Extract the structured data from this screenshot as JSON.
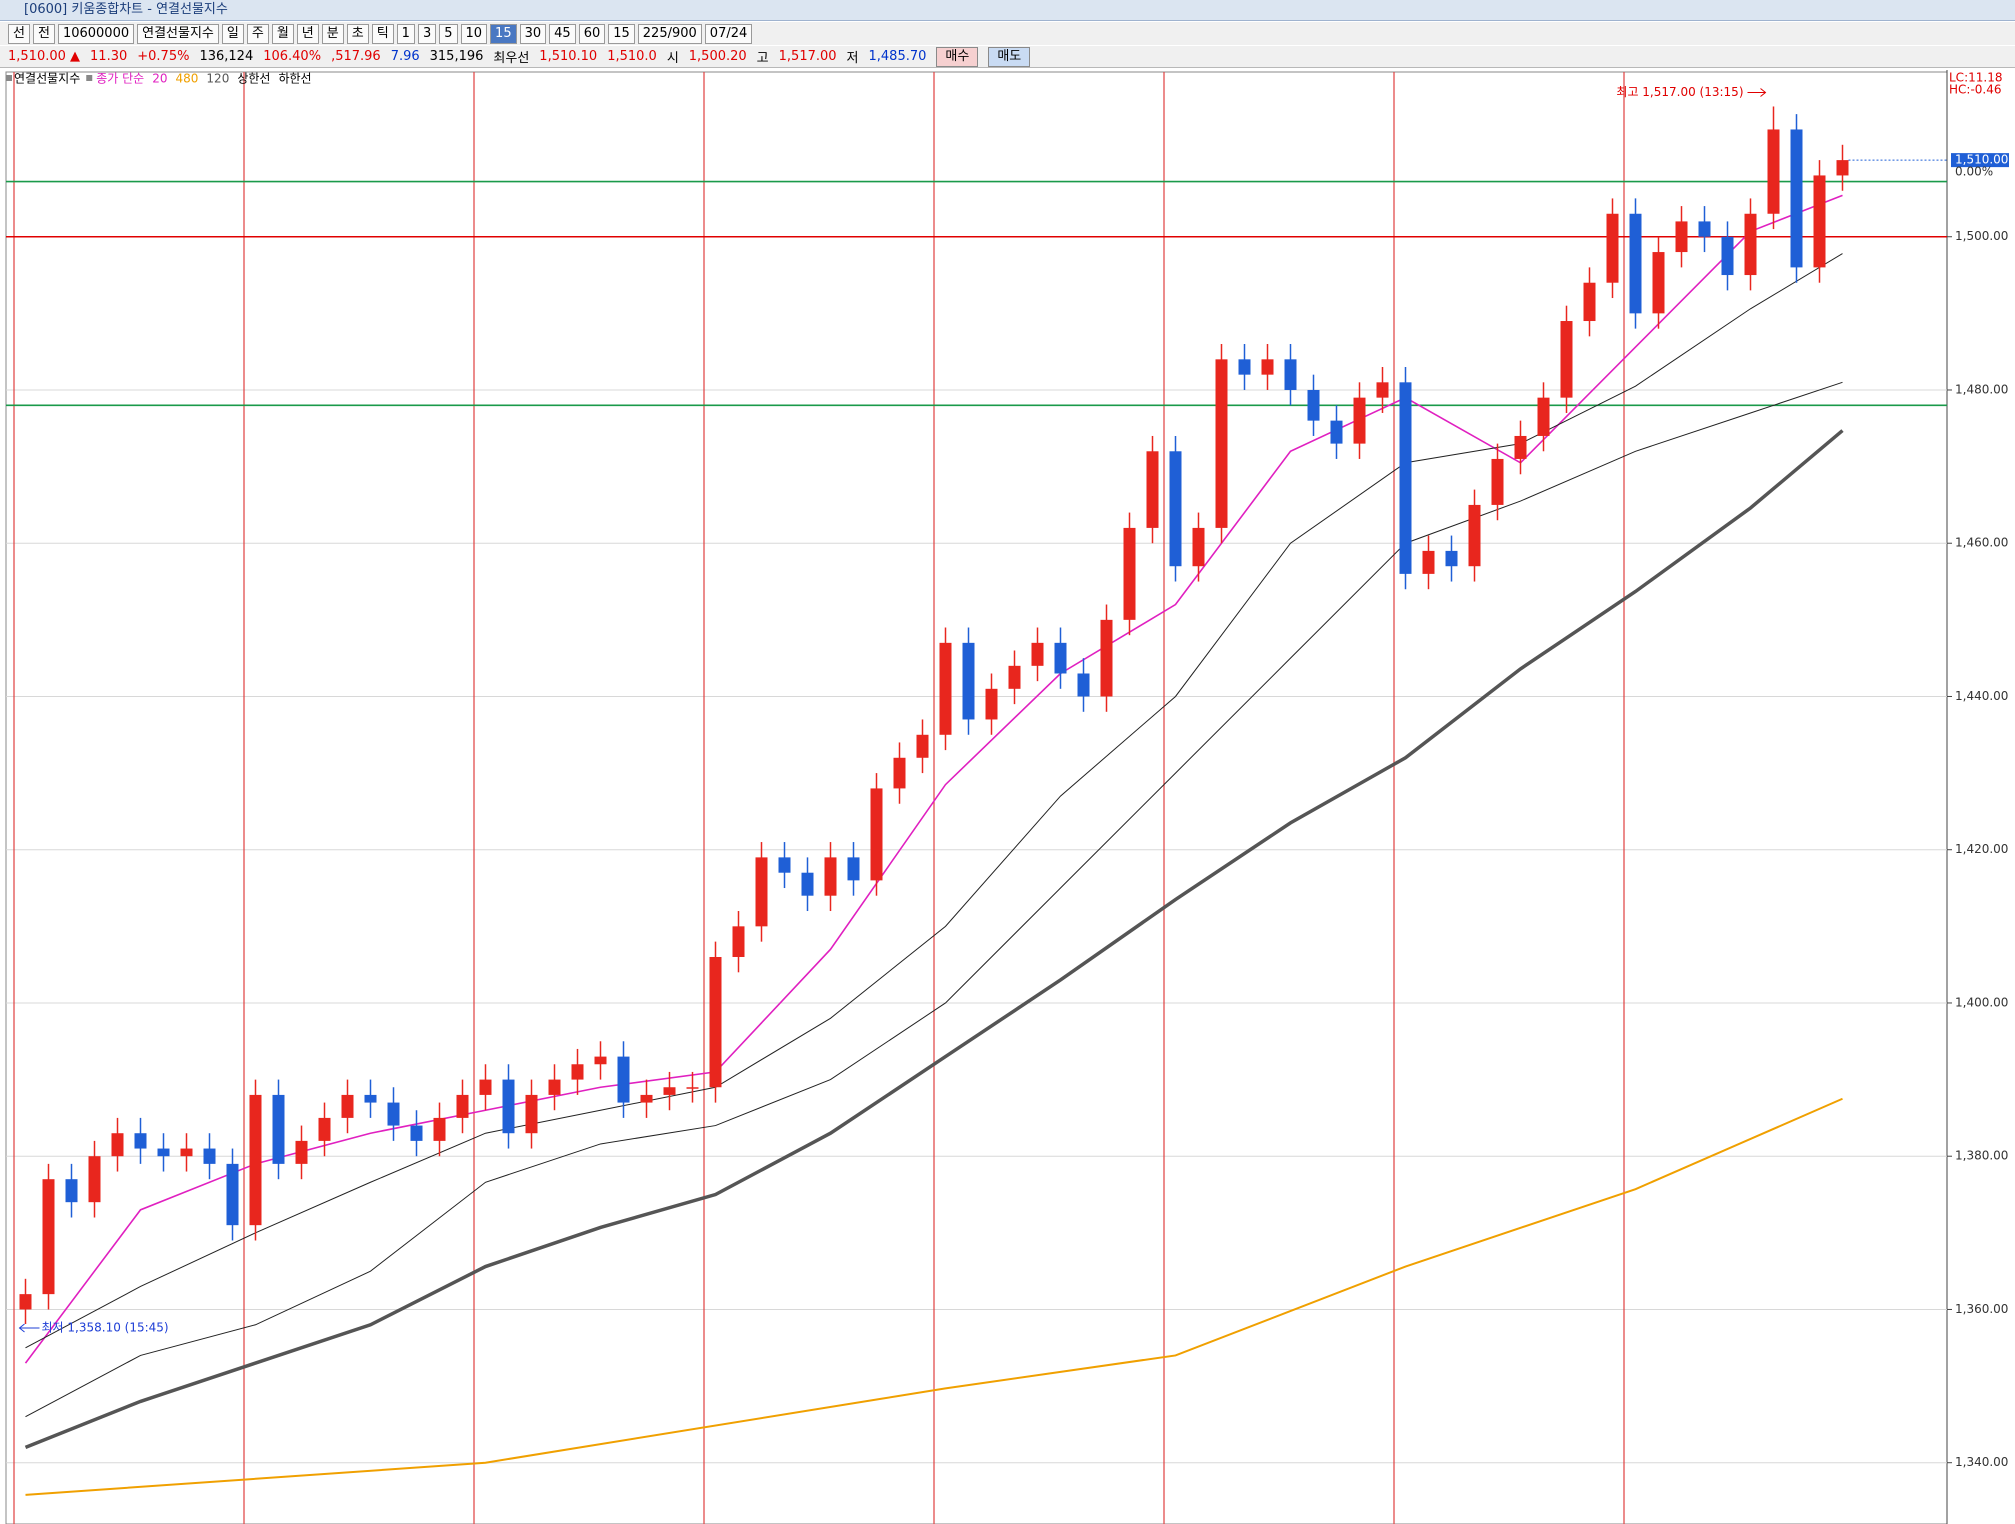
{
  "window": {
    "title": "[0600] 키움종합차트 - 연결선물지수"
  },
  "toolbar": [
    "선",
    "전",
    "10600000",
    "연결선물지수",
    "일",
    "주",
    "월",
    "년",
    "분",
    "초",
    "틱",
    "1",
    "3",
    "5",
    "10",
    "15",
    "30",
    "45",
    "60",
    "15",
    "225/900",
    "07/24"
  ],
  "quote": [
    {
      "text": "1,510.00 ▲",
      "color": "#e00000"
    },
    {
      "text": "11.30",
      "color": "#e00000"
    },
    {
      "text": "+0.75%",
      "color": "#e00000"
    },
    {
      "text": "136,124",
      "color": "#000000"
    },
    {
      "text": "106.40%",
      "color": "#e00000"
    },
    {
      "text": ",517.96",
      "color": "#e00000"
    },
    {
      "text": "7.96",
      "color": "#0033cc"
    },
    {
      "text": "315,196",
      "color": "#000000"
    },
    {
      "text": "최우선",
      "color": "#000000"
    },
    {
      "text": "1,510.10",
      "color": "#e00000"
    },
    {
      "text": "1,510.0",
      "color": "#e00000"
    },
    {
      "text": "시",
      "color": "#000000"
    },
    {
      "text": "1,500.20",
      "color": "#e00000"
    },
    {
      "text": "고",
      "color": "#000000"
    },
    {
      "text": "1,517.00",
      "color": "#e00000"
    },
    {
      "text": "저",
      "color": "#000000"
    },
    {
      "text": "1,485.70",
      "color": "#0033cc"
    }
  ],
  "buttons": [
    "매수",
    "매도"
  ],
  "chart_data": {
    "type": "candlestick",
    "instrument": "연결선물지수",
    "legend_prefix": "종가 단순",
    "extra_legend": [
      "상한선",
      "하한선"
    ],
    "corner_labels": [
      "LC:11.18",
      "HC:-0.46"
    ],
    "high_label": "최고 1,517.00 (13:15)",
    "low_label": "최저 1,358.10 (15:45)",
    "last_label": "1,510.00",
    "change_label": "0.00%",
    "up_color": "#e8261e",
    "down_color": "#1f5fd6",
    "candles": {
      "open": [
        1360,
        1362,
        1377,
        1374,
        1380,
        1383,
        1381,
        1380,
        1381,
        1379,
        1371,
        1388,
        1379,
        1382,
        1385,
        1388,
        1387,
        1384,
        1382,
        1385,
        1388,
        1390,
        1383,
        1388,
        1390,
        1392,
        1393,
        1387,
        1388,
        1389,
        1389,
        1406,
        1410,
        1419,
        1417,
        1414,
        1419,
        1416,
        1428,
        1432,
        1435,
        1447,
        1437,
        1441,
        1444,
        1447,
        1443,
        1440,
        1450,
        1462,
        1472,
        1457,
        1462,
        1484,
        1482,
        1484,
        1480,
        1476,
        1473,
        1479,
        1481,
        1456,
        1459,
        1457,
        1465,
        1471,
        1474,
        1479,
        1489,
        1494,
        1503,
        1490,
        1498,
        1502,
        1500,
        1495,
        1503,
        1514,
        1496,
        1508
      ],
      "high": [
        1364,
        1379,
        1379,
        1382,
        1385,
        1385,
        1383,
        1383,
        1383,
        1381,
        1390,
        1390,
        1384,
        1387,
        1390,
        1390,
        1389,
        1386,
        1387,
        1390,
        1392,
        1392,
        1390,
        1392,
        1394,
        1395,
        1395,
        1390,
        1391,
        1391,
        1408,
        1412,
        1421,
        1421,
        1419,
        1421,
        1421,
        1430,
        1434,
        1437,
        1449,
        1449,
        1443,
        1446,
        1449,
        1449,
        1445,
        1452,
        1464,
        1474,
        1474,
        1464,
        1486,
        1486,
        1486,
        1486,
        1482,
        1478,
        1481,
        1483,
        1483,
        1461,
        1461,
        1467,
        1473,
        1476,
        1481,
        1491,
        1496,
        1505,
        1505,
        1500,
        1504,
        1504,
        1502,
        1505,
        1517,
        1516,
        1510,
        1512
      ],
      "low": [
        1358.1,
        1360,
        1372,
        1372,
        1378,
        1379,
        1378,
        1378,
        1377,
        1369,
        1369,
        1377,
        1377,
        1380,
        1383,
        1385,
        1382,
        1380,
        1380,
        1383,
        1386,
        1381,
        1381,
        1386,
        1388,
        1390,
        1385,
        1385,
        1386,
        1387,
        1387,
        1404,
        1408,
        1415,
        1412,
        1412,
        1414,
        1414,
        1426,
        1430,
        1433,
        1435,
        1435,
        1439,
        1442,
        1441,
        1438,
        1438,
        1448,
        1460,
        1455,
        1455,
        1460,
        1480,
        1480,
        1478,
        1474,
        1471,
        1471,
        1477,
        1454,
        1454,
        1455,
        1455,
        1463,
        1469,
        1472,
        1477,
        1487,
        1492,
        1488,
        1488,
        1496,
        1498,
        1493,
        1493,
        1501,
        1494,
        1494,
        1506
      ],
      "close": [
        1362,
        1377,
        1374,
        1380,
        1383,
        1381,
        1380,
        1381,
        1379,
        1371,
        1388,
        1379,
        1382,
        1385,
        1388,
        1387,
        1384,
        1382,
        1385,
        1388,
        1390,
        1383,
        1388,
        1390,
        1392,
        1393,
        1387,
        1388,
        1389,
        1389,
        1406,
        1410,
        1419,
        1417,
        1414,
        1419,
        1416,
        1428,
        1432,
        1435,
        1447,
        1437,
        1441,
        1444,
        1447,
        1443,
        1440,
        1450,
        1462,
        1472,
        1457,
        1462,
        1484,
        1482,
        1484,
        1480,
        1476,
        1473,
        1479,
        1481,
        1456,
        1459,
        1457,
        1465,
        1471,
        1474,
        1479,
        1489,
        1494,
        1503,
        1490,
        1498,
        1502,
        1500,
        1495,
        1503,
        1514,
        1496,
        1508,
        1510
      ]
    },
    "series": [
      {
        "name": "20",
        "color": "#e020c0",
        "width": 1.6,
        "x": [
          0,
          5,
          10,
          15,
          20,
          25,
          30,
          35,
          40,
          45,
          50,
          55,
          60,
          65,
          70,
          75,
          79
        ],
        "values": [
          1353,
          1373,
          1379,
          1383,
          1386,
          1389,
          1391,
          1407,
          1428.5,
          1443,
          1452,
          1472,
          1479,
          1470.5,
          1485.6,
          1500.7,
          1505.4
        ]
      },
      {
        "name": "480",
        "color": "#f0a000",
        "width": 2,
        "x": [
          0,
          20,
          40,
          50,
          60,
          70,
          79
        ],
        "values": [
          1335.8,
          1340,
          1349.7,
          1354,
          1365.6,
          1375.7,
          1387.5
        ]
      },
      {
        "name": "120",
        "color": "#555555",
        "width": 3.5,
        "x": [
          0,
          5,
          10,
          15,
          20,
          25,
          30,
          35,
          40,
          45,
          50,
          55,
          60,
          65,
          70,
          75,
          79
        ],
        "values": [
          1342,
          1348,
          1353,
          1358,
          1365.6,
          1370.7,
          1375,
          1383,
          1393,
          1403,
          1413.5,
          1423.5,
          1432,
          1443.6,
          1453.7,
          1464.6,
          1474.7
        ]
      },
      {
        "color": "#222222",
        "width": 1,
        "x": [
          0,
          5,
          10,
          15,
          20,
          25,
          30,
          35,
          40,
          45,
          50,
          55,
          60,
          65,
          70,
          75,
          79
        ],
        "values": [
          1355,
          1363,
          1370,
          1376.6,
          1383,
          1386,
          1389,
          1398,
          1410,
          1427,
          1440,
          1460,
          1470.5,
          1473,
          1480.5,
          1490.6,
          1497.8
        ]
      },
      {
        "color": "#222222",
        "width": 1,
        "x": [
          0,
          5,
          10,
          15,
          20,
          25,
          30,
          35,
          40,
          45,
          50,
          55,
          60,
          65,
          70,
          75,
          79
        ],
        "values": [
          1346,
          1354,
          1358,
          1365,
          1376.6,
          1381.6,
          1384,
          1390,
          1400,
          1415,
          1430,
          1445,
          1460,
          1465.5,
          1472,
          1477,
          1481
        ]
      }
    ],
    "hlines": [
      {
        "value": 1507.2,
        "color": "#1a9a4a"
      },
      {
        "value": 1500,
        "color": "#e00000"
      },
      {
        "value": 1478,
        "color": "#1a9a4a"
      }
    ],
    "ylim": [
      1332,
      1521.5
    ],
    "yticks": [
      {
        "value": 1340,
        "label": "1,340.00"
      },
      {
        "value": 1360,
        "label": "1,360.00"
      },
      {
        "value": 1380,
        "label": "1,380.00"
      },
      {
        "value": 1400,
        "label": "1,400.00"
      },
      {
        "value": 1420,
        "label": "1,420.00"
      },
      {
        "value": 1440,
        "label": "1,440.00"
      },
      {
        "value": 1460,
        "label": "1,460.00"
      },
      {
        "value": 1480,
        "label": "1,480.00"
      },
      {
        "value": 1500,
        "label": "1,500.00"
      }
    ],
    "grid": true
  }
}
